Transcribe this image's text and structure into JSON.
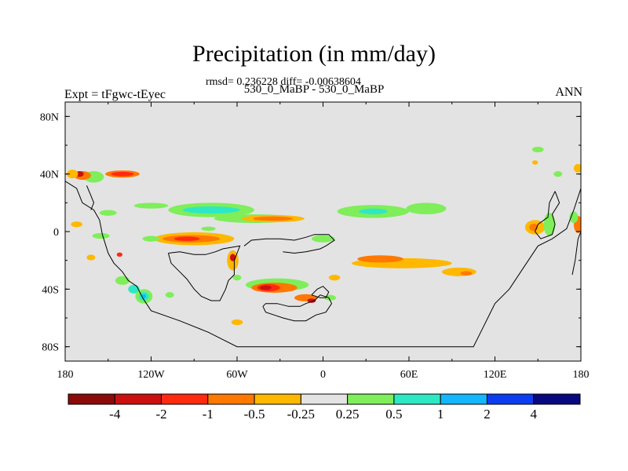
{
  "chart_data": {
    "type": "heatmap",
    "title": "Precipitation (in mm/day)",
    "stats_text": "rmsd= 0.236228 diff= -0.00638604",
    "cases_text": "530_0_MaBP - 530_0_MaBP",
    "left_string": "Expt = tFgwc-tEyec",
    "right_string": "ANN",
    "x_range": [
      -180,
      180
    ],
    "y_range": [
      -90,
      90
    ],
    "x_ticks": [
      {
        "value": -180,
        "label": "180"
      },
      {
        "value": -120,
        "label": "120W"
      },
      {
        "value": -60,
        "label": "60W"
      },
      {
        "value": 0,
        "label": "0"
      },
      {
        "value": 60,
        "label": "60E"
      },
      {
        "value": 120,
        "label": "120E"
      },
      {
        "value": 180,
        "label": "180"
      }
    ],
    "y_ticks": [
      {
        "value": 80,
        "label": "80N"
      },
      {
        "value": 40,
        "label": "40N"
      },
      {
        "value": 0,
        "label": "0"
      },
      {
        "value": -40,
        "label": "40S"
      },
      {
        "value": -80,
        "label": "80S"
      }
    ],
    "background_color": "#e3e3e3",
    "colorbar": {
      "colors": [
        "#8b0a0a",
        "#cc1010",
        "#ff2a10",
        "#ff7800",
        "#ffb800",
        "#e3e3e3",
        "#7fee5a",
        "#2ee8c4",
        "#13b6ff",
        "#0c3ef0",
        "#08087f"
      ],
      "labels": [
        "-4",
        "-2",
        "-1",
        "-0.5",
        "-0.25",
        "0.25",
        "0.5",
        "1",
        "2",
        "4"
      ]
    },
    "anomalies": [
      {
        "lon": -160,
        "lat": 38,
        "rx": 7,
        "ry": 4,
        "level": 0.5
      },
      {
        "lon": -168,
        "lat": 39,
        "rx": 6,
        "ry": 3,
        "level": -0.5
      },
      {
        "lon": -170,
        "lat": 40,
        "rx": 3,
        "ry": 2,
        "level": -2
      },
      {
        "lon": -175,
        "lat": 40,
        "rx": 4,
        "ry": 3,
        "level": -0.25
      },
      {
        "lon": -140,
        "lat": 40,
        "rx": 12,
        "ry": 2.5,
        "level": -0.5
      },
      {
        "lon": -140,
        "lat": 40,
        "rx": 8,
        "ry": 1.5,
        "level": -1
      },
      {
        "lon": -78,
        "lat": 15,
        "rx": 30,
        "ry": 5,
        "level": 0.5
      },
      {
        "lon": -78,
        "lat": 15,
        "rx": 20,
        "ry": 2.5,
        "level": 1
      },
      {
        "lon": -48,
        "lat": 9,
        "rx": 28,
        "ry": 3,
        "level": 0.5
      },
      {
        "lon": -35,
        "lat": 9,
        "rx": 22,
        "ry": 2.5,
        "level": -0.25
      },
      {
        "lon": -35,
        "lat": 9,
        "rx": 14,
        "ry": 1.5,
        "level": -0.5
      },
      {
        "lon": -120,
        "lat": 18,
        "rx": 12,
        "ry": 2,
        "level": 0.25
      },
      {
        "lon": -150,
        "lat": 13,
        "rx": 6,
        "ry": 2,
        "level": 0.25
      },
      {
        "lon": -172,
        "lat": 5,
        "rx": 4,
        "ry": 2,
        "level": -0.25
      },
      {
        "lon": 35,
        "lat": 14,
        "rx": 25,
        "ry": 4.5,
        "level": 0.5
      },
      {
        "lon": 35,
        "lat": 14,
        "rx": 10,
        "ry": 2,
        "level": 1
      },
      {
        "lon": 72,
        "lat": 16,
        "rx": 14,
        "ry": 4,
        "level": 0.5
      },
      {
        "lon": -90,
        "lat": -5,
        "rx": 28,
        "ry": 4.5,
        "level": -0.25
      },
      {
        "lon": -92,
        "lat": -5,
        "rx": 20,
        "ry": 2.5,
        "level": -0.5
      },
      {
        "lon": -95,
        "lat": -5,
        "rx": 9,
        "ry": 1.5,
        "level": -1
      },
      {
        "lon": -155,
        "lat": -3,
        "rx": 6,
        "ry": 2,
        "level": 0.5
      },
      {
        "lon": -120,
        "lat": -5,
        "rx": 6,
        "ry": 2,
        "level": 0.5
      },
      {
        "lon": 0,
        "lat": -5,
        "rx": 8,
        "ry": 2.5,
        "level": 0.5
      },
      {
        "lon": 55,
        "lat": -22,
        "rx": 35,
        "ry": 3.5,
        "level": -0.25
      },
      {
        "lon": 40,
        "lat": -19,
        "rx": 16,
        "ry": 2.5,
        "level": -0.5
      },
      {
        "lon": 95,
        "lat": -28,
        "rx": 12,
        "ry": 3,
        "level": -0.25
      },
      {
        "lon": -63,
        "lat": -20,
        "rx": 4,
        "ry": 7,
        "level": -0.25
      },
      {
        "lon": -63,
        "lat": -18,
        "rx": 2,
        "ry": 2.5,
        "level": -2
      },
      {
        "lon": -32,
        "lat": -37,
        "rx": 22,
        "ry": 4.5,
        "level": 0.5
      },
      {
        "lon": -34,
        "lat": -39,
        "rx": 16,
        "ry": 3.5,
        "level": -0.5
      },
      {
        "lon": -38,
        "lat": -39,
        "rx": 8,
        "ry": 2.5,
        "level": -1
      },
      {
        "lon": -40,
        "lat": -39,
        "rx": 4,
        "ry": 1.5,
        "level": -2
      },
      {
        "lon": -12,
        "lat": -46,
        "rx": 8,
        "ry": 2.5,
        "level": -0.5
      },
      {
        "lon": -8,
        "lat": -48,
        "rx": 3,
        "ry": 1.5,
        "level": -2
      },
      {
        "lon": 5,
        "lat": -46,
        "rx": 4,
        "ry": 2,
        "level": 0.5
      },
      {
        "lon": 8,
        "lat": -32,
        "rx": 4,
        "ry": 2,
        "level": -0.25
      },
      {
        "lon": -60,
        "lat": -32,
        "rx": 3,
        "ry": 2,
        "level": 0.5
      },
      {
        "lon": -60,
        "lat": -63,
        "rx": 4,
        "ry": 2,
        "level": -0.25
      },
      {
        "lon": -140,
        "lat": -34,
        "rx": 5,
        "ry": 3,
        "level": 0.5
      },
      {
        "lon": -132,
        "lat": -40,
        "rx": 4,
        "ry": 3,
        "level": 1
      },
      {
        "lon": -125,
        "lat": -45,
        "rx": 6,
        "ry": 5,
        "level": 0.5
      },
      {
        "lon": -125,
        "lat": -45,
        "rx": 3.5,
        "ry": 3,
        "level": 1
      },
      {
        "lon": -125,
        "lat": -45,
        "rx": 1.5,
        "ry": 1.5,
        "level": 2
      },
      {
        "lon": -162,
        "lat": -18,
        "rx": 3,
        "ry": 2,
        "level": -0.25
      },
      {
        "lon": -142,
        "lat": -16,
        "rx": 2,
        "ry": 1.5,
        "level": -1
      },
      {
        "lon": -107,
        "lat": -44,
        "rx": 3,
        "ry": 2,
        "level": 0.5
      },
      {
        "lon": 148,
        "lat": 3,
        "rx": 7,
        "ry": 5,
        "level": -0.25
      },
      {
        "lon": 147,
        "lat": 3,
        "rx": 3,
        "ry": 2.5,
        "level": -0.5
      },
      {
        "lon": 158,
        "lat": 5,
        "rx": 4,
        "ry": 8,
        "level": 0.5
      },
      {
        "lon": 178,
        "lat": 5,
        "rx": 3,
        "ry": 6,
        "level": -0.5
      },
      {
        "lon": 175,
        "lat": 10,
        "rx": 3,
        "ry": 4,
        "level": 0.5
      },
      {
        "lon": 150,
        "lat": 57,
        "rx": 4,
        "ry": 2,
        "level": 0.5
      },
      {
        "lon": 164,
        "lat": 40,
        "rx": 3,
        "ry": 2,
        "level": 0.5
      },
      {
        "lon": 178,
        "lat": 44,
        "rx": 3,
        "ry": 3,
        "level": -0.25
      },
      {
        "lon": 148,
        "lat": 48,
        "rx": 2,
        "ry": 1.5,
        "level": -0.25
      },
      {
        "lon": 100,
        "lat": -29,
        "rx": 4,
        "ry": 1.5,
        "level": -0.5
      },
      {
        "lon": -80,
        "lat": 2,
        "rx": 5,
        "ry": 1.5,
        "level": 0.5
      }
    ]
  }
}
